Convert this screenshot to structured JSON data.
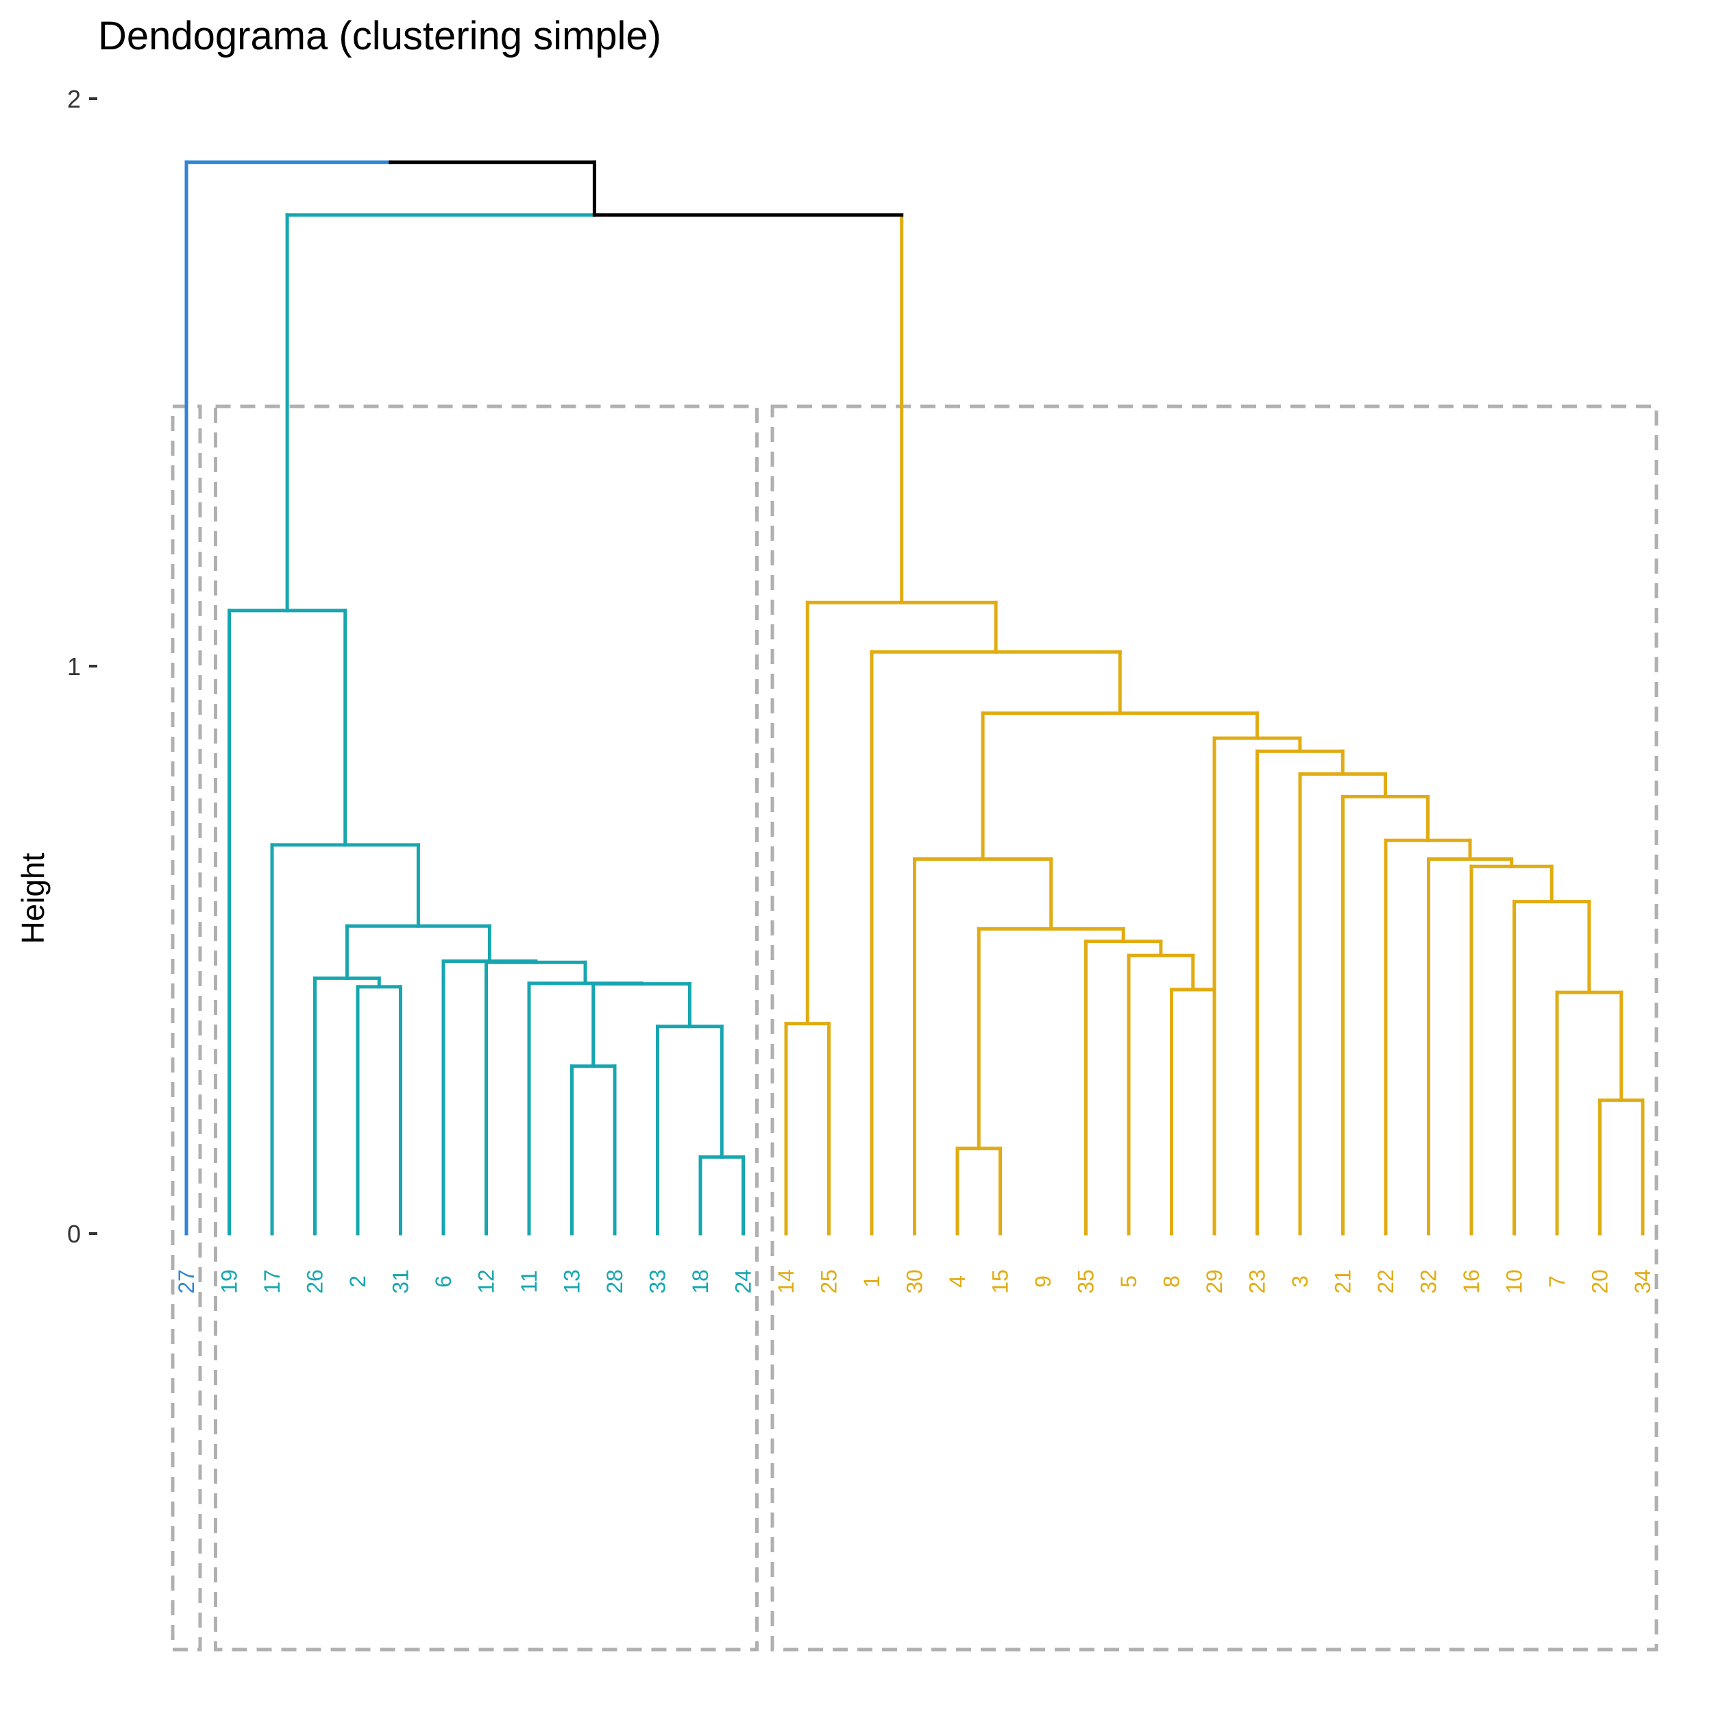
{
  "chart_data": {
    "type": "dendrogram",
    "title": "Dendograma (clustering simple)",
    "ylabel": "Height",
    "xlabel": "",
    "ylim": [
      0,
      2
    ],
    "yticks": [
      "0",
      "1",
      "2"
    ],
    "grid": false,
    "leaves": [
      "27",
      "19",
      "17",
      "26",
      "2",
      "31",
      "6",
      "12",
      "11",
      "13",
      "28",
      "33",
      "18",
      "24",
      "14",
      "25",
      "1",
      "30",
      "4",
      "15",
      "9",
      "35",
      "5",
      "8",
      "29",
      "23",
      "3",
      "21",
      "22",
      "32",
      "16",
      "10",
      "7",
      "20",
      "34"
    ],
    "leaf_groups": [
      1,
      2,
      2,
      2,
      2,
      2,
      2,
      2,
      2,
      2,
      2,
      2,
      2,
      2,
      3,
      3,
      3,
      3,
      3,
      3,
      3,
      3,
      3,
      3,
      3,
      3,
      3,
      3,
      3,
      3,
      3,
      3,
      3,
      3,
      3
    ],
    "group_colors": {
      "0": "#000000",
      "1": "#2E86D4",
      "2": "#17A6B0",
      "3": "#E1AC13"
    },
    "rect_color": "#B0B0B0",
    "rect_groups": [
      [
        0,
        0
      ],
      [
        1,
        13
      ],
      [
        14,
        34
      ]
    ],
    "merges": [
      {
        "a": -13,
        "b": -14,
        "h": 0.135,
        "g": 2
      },
      {
        "a": -19,
        "b": -20,
        "h": 0.15,
        "g": 3
      },
      {
        "a": -34,
        "b": -35,
        "h": 0.235,
        "g": 3
      },
      {
        "a": -10,
        "b": -11,
        "h": 0.295,
        "g": 2
      },
      {
        "a": -12,
        "b": 1,
        "h": 0.365,
        "g": 2
      },
      {
        "a": -15,
        "b": -16,
        "h": 0.37,
        "g": 3
      },
      {
        "a": -33,
        "b": 3,
        "h": 0.425,
        "g": 3
      },
      {
        "a": -24,
        "b": -25,
        "h": 0.43,
        "g": 3
      },
      {
        "a": -6,
        "b": -5,
        "h": 0.435,
        "g": 2
      },
      {
        "a": 4,
        "b": 5,
        "h": 0.44,
        "g": 2
      },
      {
        "a": -4,
        "b": 9,
        "h": 0.45,
        "g": 2
      },
      {
        "a": -9,
        "b": 10,
        "h": 0.441,
        "g": 2
      },
      {
        "a": -23,
        "b": 8,
        "h": 0.49,
        "g": 3
      },
      {
        "a": -8,
        "b": 12,
        "h": 0.478,
        "g": 2
      },
      {
        "a": -7,
        "b": 14,
        "h": 0.48,
        "g": 2
      },
      {
        "a": -22,
        "b": 13,
        "h": 0.515,
        "g": 3
      },
      {
        "a": 2,
        "b": 16,
        "h": 0.537,
        "g": 3
      },
      {
        "a": 11,
        "b": 15,
        "h": 0.542,
        "g": 2
      },
      {
        "a": -32,
        "b": 7,
        "h": 0.585,
        "g": 3
      },
      {
        "a": -31,
        "b": 19,
        "h": 0.647,
        "g": 3
      },
      {
        "a": -18,
        "b": 17,
        "h": 0.66,
        "g": 3
      },
      {
        "a": -30,
        "b": 20,
        "h": 0.66,
        "g": 3
      },
      {
        "a": -3,
        "b": 18,
        "h": 0.685,
        "g": 2
      },
      {
        "a": -29,
        "b": 22,
        "h": 0.693,
        "g": 3
      },
      {
        "a": -28,
        "b": 24,
        "h": 0.77,
        "g": 3
      },
      {
        "a": -27,
        "b": 25,
        "h": 0.81,
        "g": 3
      },
      {
        "a": -26,
        "b": 26,
        "h": 0.85,
        "g": 3
      },
      {
        "a": -25,
        "b": 27,
        "h": 0.873,
        "g": 3
      },
      {
        "a": 21,
        "b": 28,
        "h": 0.917,
        "g": 3
      },
      {
        "a": -17,
        "b": 29,
        "h": 1.025,
        "g": 3
      },
      {
        "a": -2,
        "b": 23,
        "h": 1.098,
        "g": 2
      },
      {
        "a": 6,
        "b": 30,
        "h": 1.112,
        "g": 3
      },
      {
        "a": 31,
        "b": 32,
        "h": 1.795,
        "g": 0
      },
      {
        "a": -1,
        "b": 33,
        "h": 1.888,
        "g": 0
      }
    ]
  }
}
